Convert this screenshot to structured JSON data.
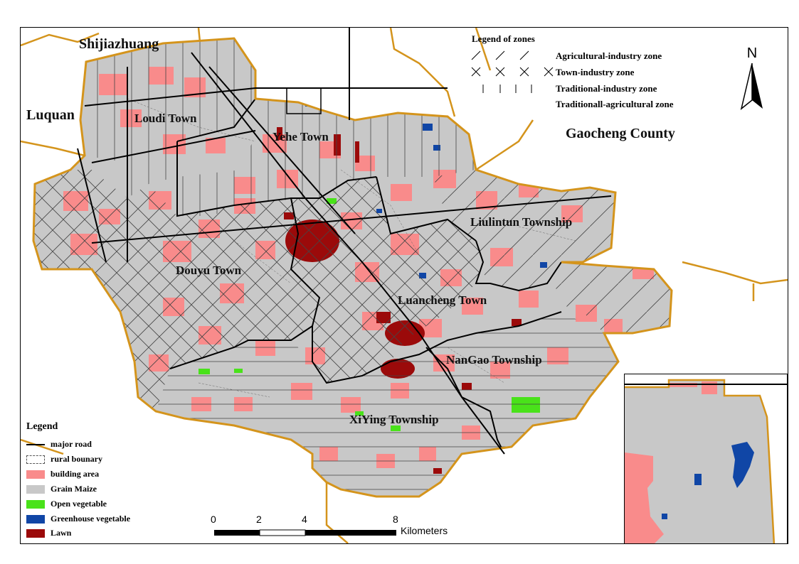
{
  "places": {
    "shijiazhuang": "Shijiazhuang",
    "luquan": "Luquan",
    "gaocheng": "Gaocheng County",
    "loudi": "Loudi Town",
    "yehe": "Yehe Town",
    "liulintun": "Liulintun Township",
    "douyu": "Douyu Town",
    "luancheng": "Luancheng Town",
    "nangao": "NanGao Township",
    "xiying": "XiYing Township"
  },
  "zones_legend": {
    "title": "Legend of zones",
    "items": [
      {
        "label": "Agricultural-industry zone",
        "pattern": "diagonal"
      },
      {
        "label": "Town-industry zone",
        "pattern": "cross"
      },
      {
        "label": "Traditional-industry zone",
        "pattern": "vertical"
      },
      {
        "label": "Traditionall-agricultural zone",
        "pattern": "horizontal"
      }
    ]
  },
  "legend": {
    "title": "Legend",
    "items": [
      {
        "label": "major road",
        "kind": "line",
        "color": "#000000"
      },
      {
        "label": "rural bounary",
        "kind": "dashed-box",
        "color": "#555555"
      },
      {
        "label": "building area",
        "kind": "fill",
        "color": "#f98b8b"
      },
      {
        "label": "Grain Maize",
        "kind": "fill",
        "color": "#c8c8c8"
      },
      {
        "label": "Open vegetable",
        "kind": "fill",
        "color": "#49e21a"
      },
      {
        "label": "Greenhouse vegetable",
        "kind": "fill",
        "color": "#1046a6"
      },
      {
        "label": "Lawn",
        "kind": "fill",
        "color": "#9b0a0a"
      }
    ]
  },
  "scale": {
    "ticks": [
      "0",
      "2",
      "4",
      "8"
    ],
    "unit": "Kilometers"
  },
  "north_label": "N",
  "colors": {
    "boundary": "#d4941c",
    "building": "#f98b8b",
    "maize": "#c8c8c8",
    "open_veg": "#49e21a",
    "greenhouse": "#1046a6",
    "lawn": "#9b0a0a"
  }
}
